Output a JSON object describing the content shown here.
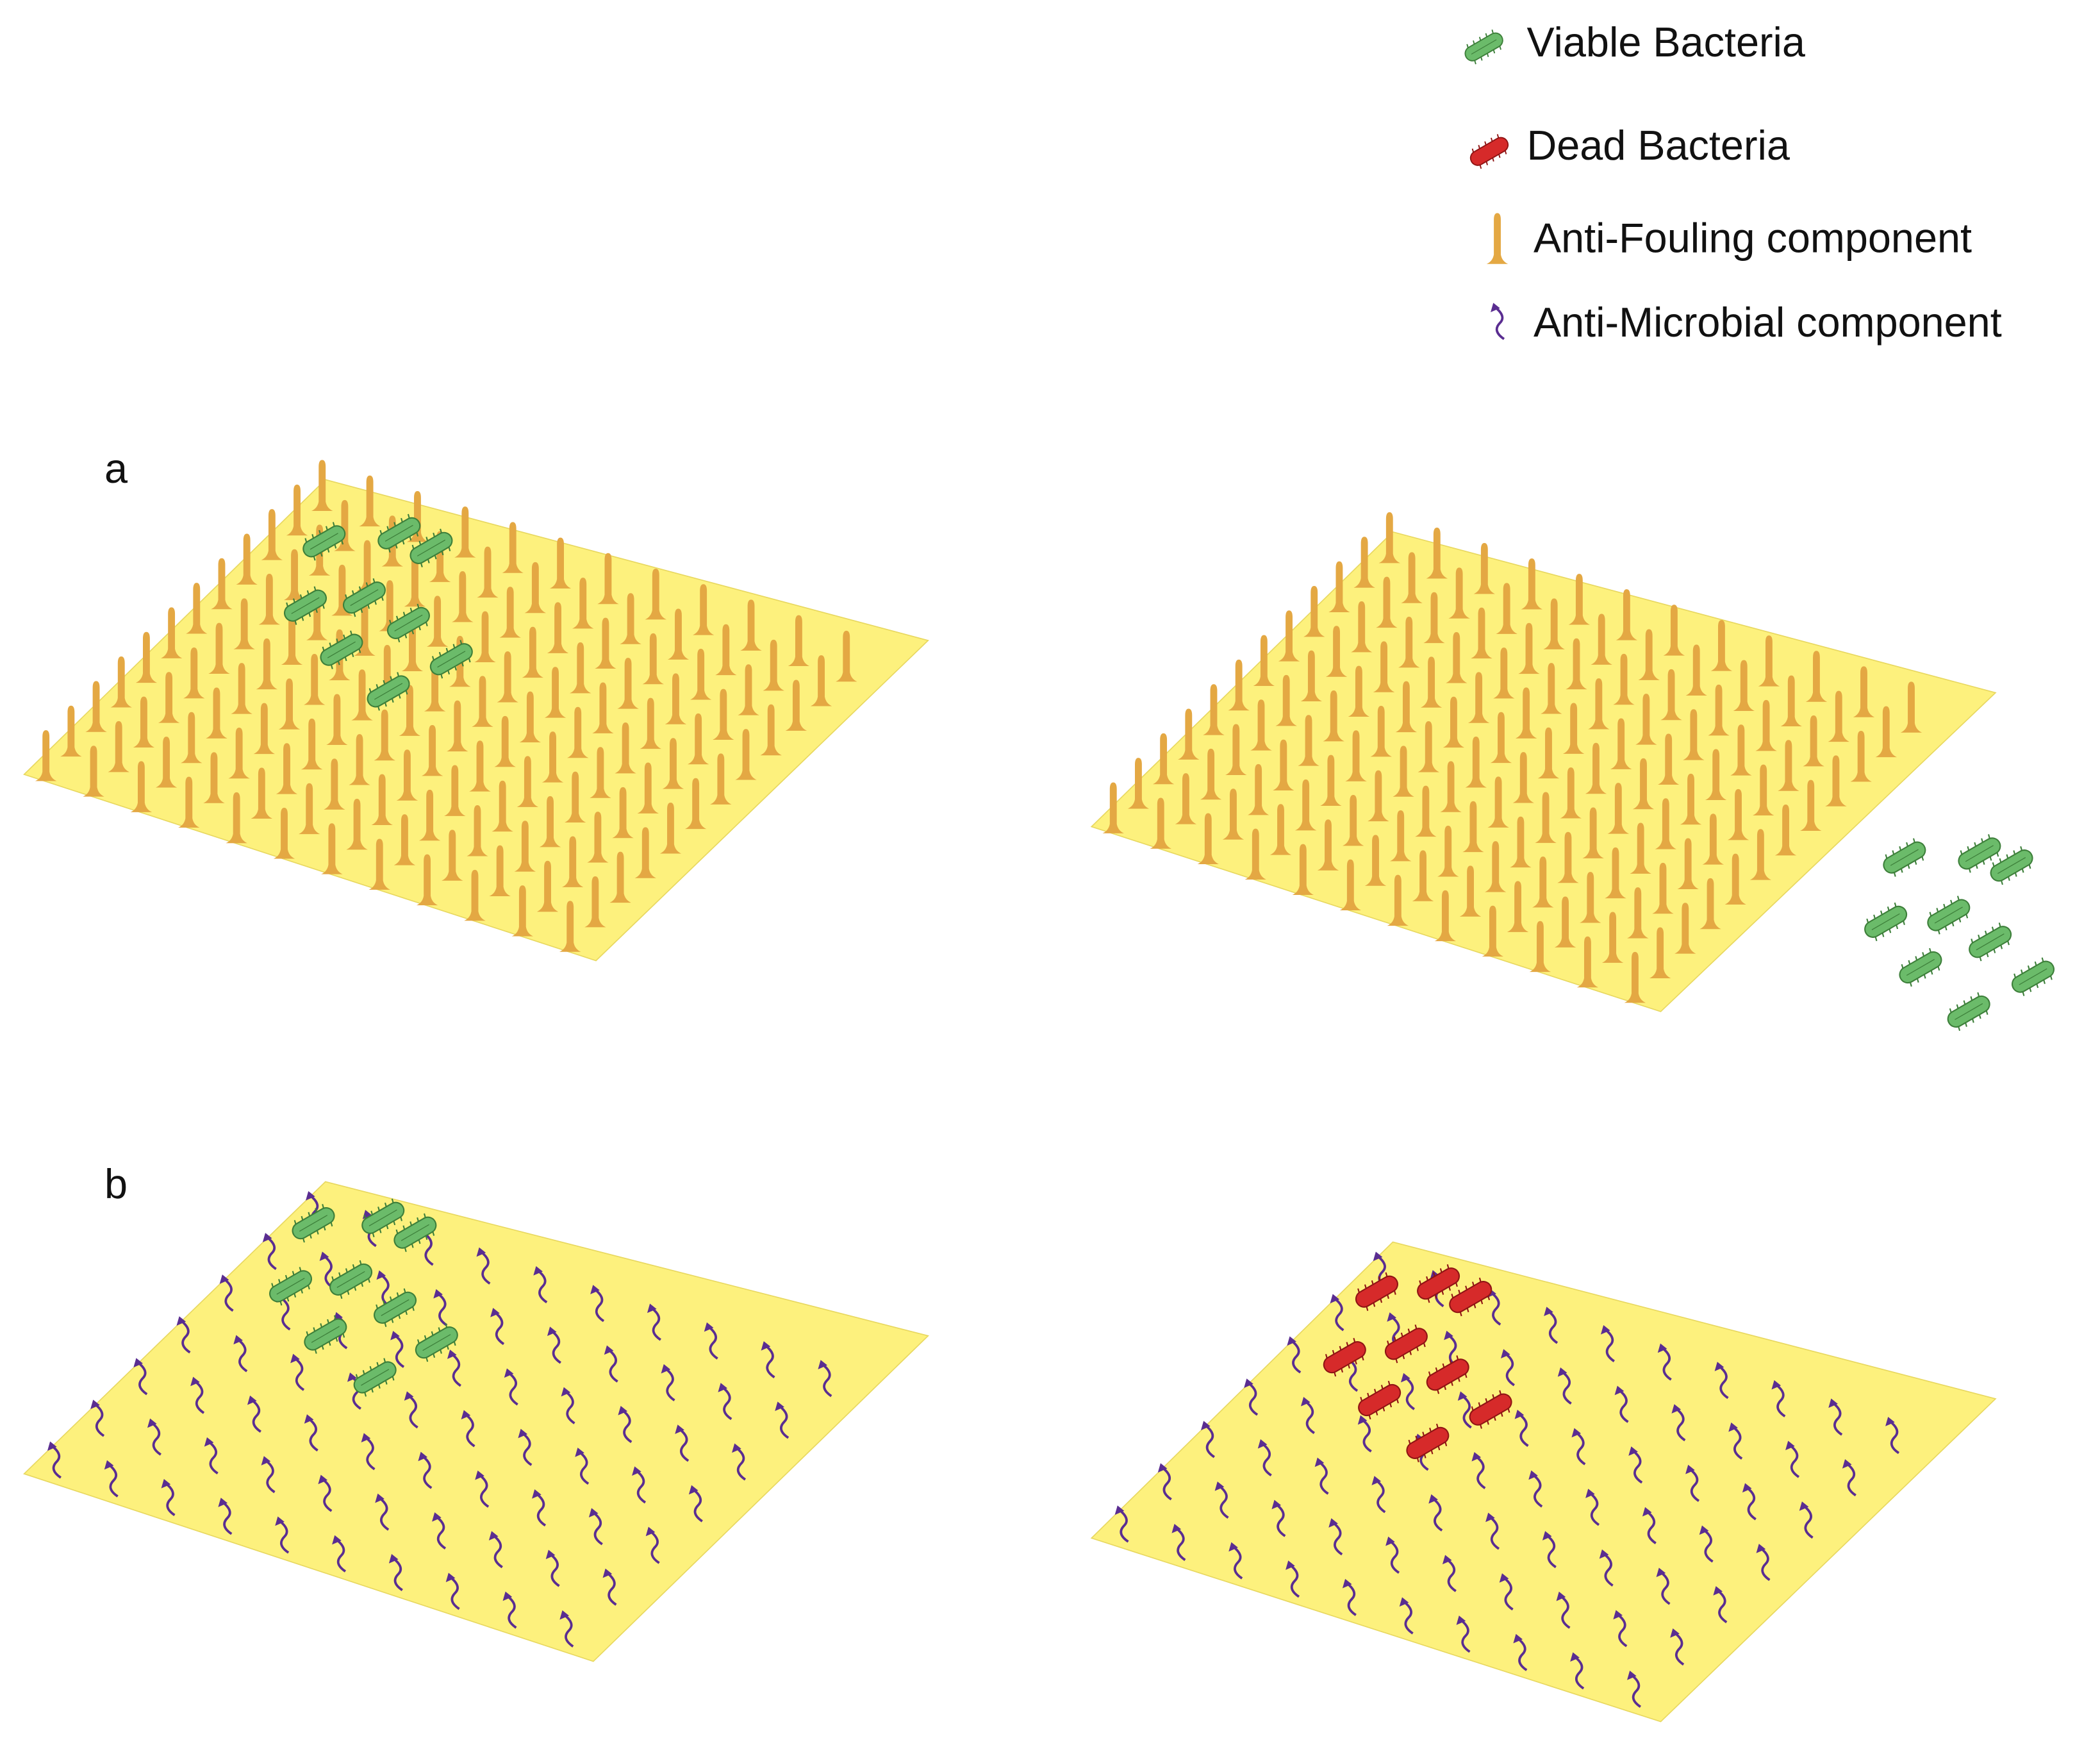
{
  "legend": [
    {
      "label": "Viable Bacteria"
    },
    {
      "label": "Dead Bacteria"
    },
    {
      "label": "Anti-Fouling component"
    },
    {
      "label": "Anti-Microbial component"
    }
  ],
  "panels": [
    {
      "label": "a"
    },
    {
      "label": "b"
    }
  ]
}
